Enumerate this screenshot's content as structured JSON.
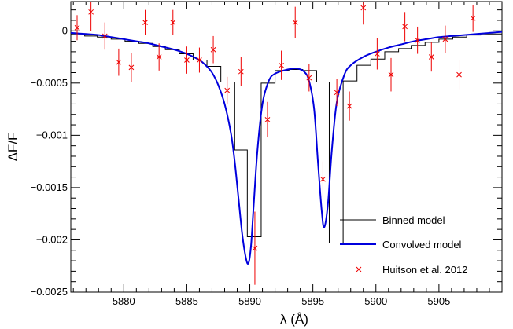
{
  "chart_data": {
    "type": "line",
    "xlabel": "λ (Å)",
    "ylabel": "ΔF/F",
    "xlim": [
      5875.8,
      5910.0
    ],
    "ylim": [
      -0.0025,
      0.00028
    ],
    "x_ticks": [
      5880,
      5885,
      5890,
      5895,
      5900,
      5905
    ],
    "x_tick_labels": [
      "5880",
      "5885",
      "5890",
      "5895",
      "5900",
      "5905"
    ],
    "y_ticks": [
      0,
      -0.0005,
      -0.001,
      -0.0015,
      -0.002,
      -0.0025
    ],
    "y_tick_labels": [
      "0",
      "−0.0005",
      "−0.001",
      "−0.0015",
      "−0.002",
      "−0.0025"
    ],
    "legend_position": "bottom-right",
    "series": [
      {
        "name": "Binned model",
        "style": "step",
        "color": "#000000",
        "edges": [
          5875.8,
          5876.9,
          5877.9,
          5879.0,
          5880.1,
          5881.2,
          5882.3,
          5883.3,
          5884.4,
          5885.5,
          5886.6,
          5887.7,
          5888.8,
          5889.8,
          5890.9,
          5892.0,
          5893.1,
          5894.2,
          5895.3,
          5896.3,
          5897.4,
          5898.5,
          5899.6,
          5900.7,
          5901.8,
          5902.8,
          5903.9,
          5905.0,
          5906.1,
          5907.2,
          5908.3,
          5910.0
        ],
        "values": [
          -3e-05,
          -5e-05,
          -6e-05,
          -8e-05,
          -0.0001,
          -0.00012,
          -0.00015,
          -0.00018,
          -0.00022,
          -0.00028,
          -0.00034,
          -0.00049,
          -0.00114,
          -0.00197,
          -0.0005,
          -0.00038,
          -0.00037,
          -0.00038,
          -0.00049,
          -0.00203,
          -0.00048,
          -0.00033,
          -0.00027,
          -0.0002,
          -0.00017,
          -0.00014,
          -0.00011,
          -8e-05,
          -6e-05,
          -4e-05,
          -3e-05
        ]
      },
      {
        "name": "Convolved model",
        "style": "line",
        "color": "#0000dd",
        "x": [
          5875.8,
          5877,
          5878,
          5879,
          5880,
          5881,
          5882,
          5883,
          5884,
          5885,
          5886,
          5886.5,
          5887,
          5887.5,
          5888,
          5888.5,
          5888.8,
          5889.1,
          5889.4,
          5889.7,
          5889.9,
          5890.1,
          5890.3,
          5890.6,
          5891,
          5891.5,
          5892,
          5893,
          5893.7,
          5894.3,
          5894.7,
          5895.1,
          5895.4,
          5895.7,
          5895.9,
          5896.2,
          5896.5,
          5896.9,
          5897.5,
          5898,
          5899,
          5900,
          5901,
          5902,
          5903,
          5904,
          5905,
          5906,
          5907,
          5908,
          5909,
          5910
        ],
        "y": [
          -2e-05,
          -3e-05,
          -4e-05,
          -6e-05,
          -8e-05,
          -0.0001,
          -0.00012,
          -0.00015,
          -0.00018,
          -0.00022,
          -0.00028,
          -0.00033,
          -0.0004,
          -0.00052,
          -0.0007,
          -0.00098,
          -0.00125,
          -0.0016,
          -0.00195,
          -0.00218,
          -0.00222,
          -0.00205,
          -0.00168,
          -0.00115,
          -0.0007,
          -0.00048,
          -0.00041,
          -0.00037,
          -0.00036,
          -0.00039,
          -0.00048,
          -0.00075,
          -0.00125,
          -0.00172,
          -0.00188,
          -0.00165,
          -0.00115,
          -0.00068,
          -0.00042,
          -0.00033,
          -0.00025,
          -0.0002,
          -0.00016,
          -0.00013,
          -0.0001,
          -8e-05,
          -6e-05,
          -5e-05,
          -4e-05,
          -3e-05,
          -2e-05,
          -1e-05
        ]
      },
      {
        "name": "Huitson et al. 2012",
        "style": "scatter",
        "marker": "x",
        "color": "#ee0000",
        "x": [
          5876.3,
          5877.4,
          5878.5,
          5879.6,
          5880.6,
          5881.7,
          5882.8,
          5883.9,
          5885.0,
          5886.0,
          5887.1,
          5888.2,
          5889.3,
          5890.4,
          5891.4,
          5892.5,
          5893.6,
          5894.7,
          5895.8,
          5896.9,
          5897.9,
          5899.0,
          5900.1,
          5901.2,
          5902.3,
          5903.3,
          5904.4,
          5905.5,
          5906.6,
          5907.7
        ],
        "y": [
          3e-05,
          0.00018,
          -5e-05,
          -0.0003,
          -0.00035,
          8e-05,
          -0.00025,
          8e-05,
          -0.00028,
          -0.00028,
          -0.00018,
          -0.00057,
          -0.00039,
          -0.00208,
          -0.00085,
          -0.00033,
          8e-05,
          -0.00045,
          -0.00142,
          -0.00059,
          -0.00072,
          0.00022,
          -0.00022,
          -0.00042,
          4e-05,
          -9e-05,
          -0.00025,
          -8e-05,
          -0.00042,
          0.00012
        ],
        "err": [
          0.00012,
          0.00018,
          0.00013,
          0.00013,
          0.00014,
          0.00012,
          0.00013,
          0.00012,
          0.00013,
          0.00012,
          0.00013,
          0.00013,
          0.00014,
          0.00035,
          0.00017,
          0.00014,
          0.00015,
          0.00013,
          0.00017,
          0.00013,
          0.00014,
          0.00016,
          0.00015,
          0.00016,
          0.00014,
          0.00013,
          0.00014,
          0.00013,
          0.00014,
          0.00013
        ]
      }
    ]
  }
}
